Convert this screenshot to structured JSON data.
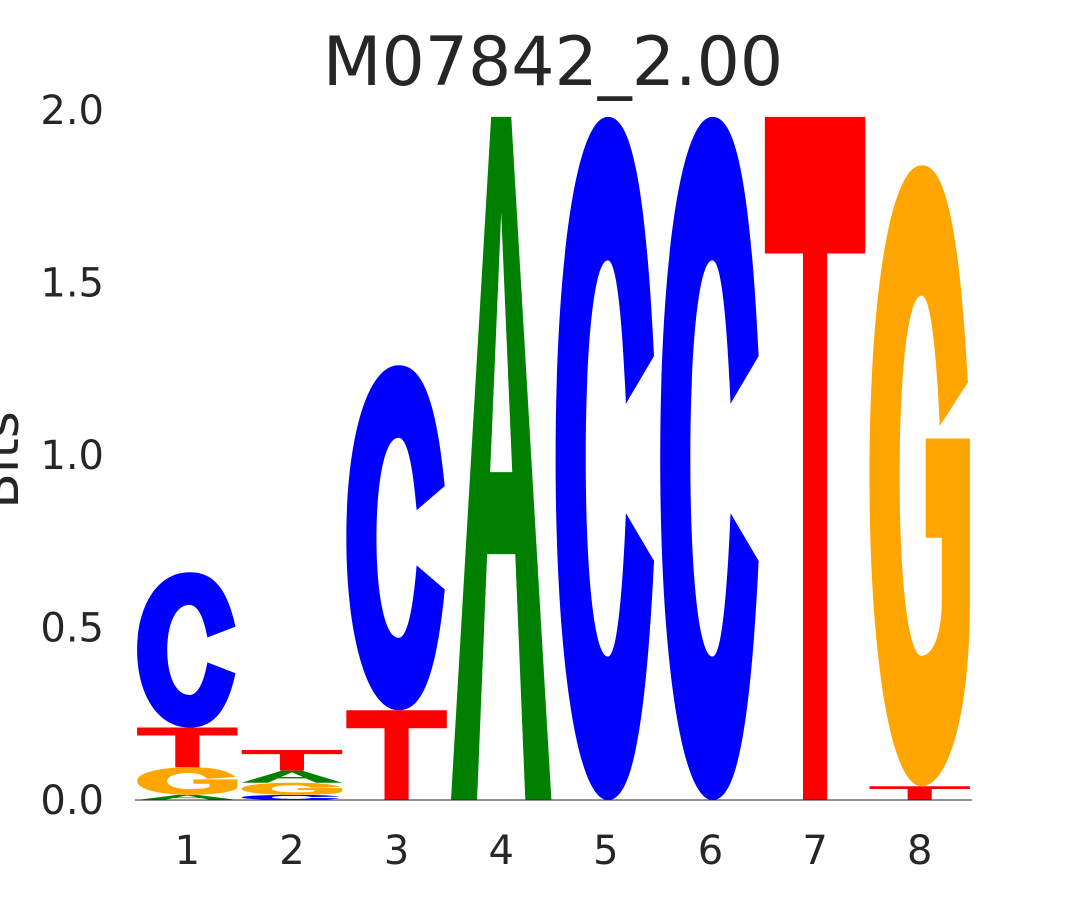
{
  "chart_data": {
    "type": "sequence-logo",
    "title": "M07842_2.00",
    "ylabel": "Bits",
    "xlabel": "",
    "ylim": [
      0,
      2.0
    ],
    "yticks": [
      "0.0",
      "0.5",
      "1.0",
      "1.5",
      "2.0"
    ],
    "positions": [
      "1",
      "2",
      "3",
      "4",
      "5",
      "6",
      "7",
      "8"
    ],
    "colors": {
      "A": "#008000",
      "C": "#0000ff",
      "G": "#ffa500",
      "T": "#ff0000"
    },
    "stacks": [
      [
        {
          "base": "A",
          "bits": 0.015
        },
        {
          "base": "G",
          "bits": 0.08
        },
        {
          "base": "T",
          "bits": 0.115
        },
        {
          "base": "C",
          "bits": 0.45
        }
      ],
      [
        {
          "base": "C",
          "bits": 0.015
        },
        {
          "base": "G",
          "bits": 0.035
        },
        {
          "base": "A",
          "bits": 0.035
        },
        {
          "base": "T",
          "bits": 0.06
        }
      ],
      [
        {
          "base": "T",
          "bits": 0.26
        },
        {
          "base": "C",
          "bits": 1.0
        }
      ],
      [
        {
          "base": "A",
          "bits": 1.98
        }
      ],
      [
        {
          "base": "C",
          "bits": 1.98
        }
      ],
      [
        {
          "base": "C",
          "bits": 1.98
        }
      ],
      [
        {
          "base": "T",
          "bits": 1.98
        }
      ],
      [
        {
          "base": "T",
          "bits": 0.04
        },
        {
          "base": "G",
          "bits": 1.8
        }
      ]
    ]
  }
}
